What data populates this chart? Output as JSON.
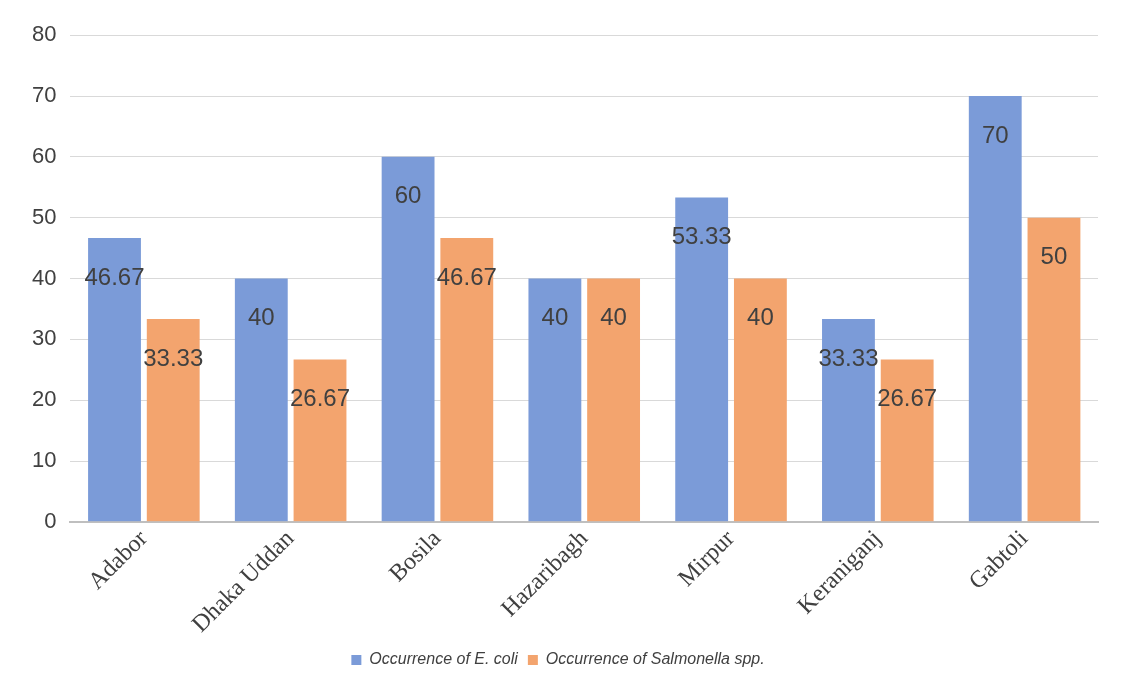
{
  "chart_data": {
    "type": "bar",
    "categories": [
      "Adabor",
      "Dhaka Uddan",
      "Bosila",
      "Hazaribagh",
      "Mirpur",
      "Keraniganj",
      "Gabtoli"
    ],
    "series": [
      {
        "name": "Occurrence of E. coli",
        "color": "#7b9bd8",
        "values": [
          46.67,
          40,
          60,
          40,
          53.33,
          33.33,
          70
        ]
      },
      {
        "name": "Occurrence of Salmonella spp.",
        "color": "#f3a46e",
        "values": [
          33.33,
          26.67,
          46.67,
          40,
          40,
          26.67,
          50
        ]
      }
    ],
    "ylim": [
      0,
      80
    ],
    "yticks": [
      0,
      10,
      20,
      30,
      40,
      50,
      60,
      70,
      80
    ],
    "grid": "y",
    "legend": "bottom",
    "data_labels": true
  }
}
